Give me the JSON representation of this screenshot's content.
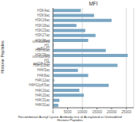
{
  "chart_data": {
    "type": "bar",
    "orientation": "horizontal",
    "title": "MFI",
    "xlabel": "Recombinant Acetyl Lysine Antibody test of Acetylated or Unmodified\nHistone Peptides",
    "ylabel": "Histone Peptides",
    "categories": [
      "H3K4ac",
      "H3K9ac",
      "H3K24ac",
      "H3K18ac",
      "H3K23ac",
      "H3K27ac",
      "H3K36ac",
      "unmodified H3, aa51-61",
      "H3K56ac",
      "H3K79ac",
      "unmodified H3, aa118-135",
      "H3K122ac",
      "H4K5ac",
      "H4K8ac",
      "H4K12ac",
      "H4H11pK5ac",
      "H4K16ac",
      "H4K20ac",
      "H4K31ac",
      "H4K91ac"
    ],
    "values": [
      9500,
      14000,
      20000,
      8000,
      11000,
      14500,
      12000,
      200,
      18000,
      25500,
      200,
      22000,
      8500,
      12000,
      400,
      19000,
      9000,
      10500,
      2200,
      1800
    ],
    "color": "#7ba7c4",
    "xlim": [
      0,
      27500
    ],
    "xticks": [
      0,
      5000,
      10000,
      15000,
      20000,
      25000
    ],
    "grid": true
  }
}
